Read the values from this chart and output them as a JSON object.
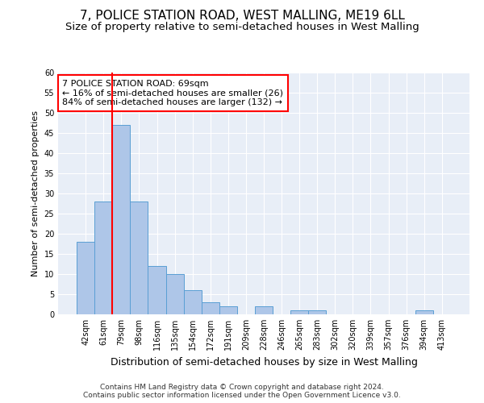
{
  "title": "7, POLICE STATION ROAD, WEST MALLING, ME19 6LL",
  "subtitle": "Size of property relative to semi-detached houses in West Malling",
  "xlabel": "Distribution of semi-detached houses by size in West Malling",
  "ylabel": "Number of semi-detached properties",
  "categories": [
    "42sqm",
    "61sqm",
    "79sqm",
    "98sqm",
    "116sqm",
    "135sqm",
    "154sqm",
    "172sqm",
    "191sqm",
    "209sqm",
    "228sqm",
    "246sqm",
    "265sqm",
    "283sqm",
    "302sqm",
    "320sqm",
    "339sqm",
    "357sqm",
    "376sqm",
    "394sqm",
    "413sqm"
  ],
  "values": [
    18,
    28,
    47,
    28,
    12,
    10,
    6,
    3,
    2,
    0,
    2,
    0,
    1,
    1,
    0,
    0,
    0,
    0,
    0,
    1,
    0
  ],
  "bar_color": "#aec6e8",
  "bar_edge_color": "#5a9fd4",
  "red_line_x": 1.5,
  "annotation_text": "7 POLICE STATION ROAD: 69sqm\n← 16% of semi-detached houses are smaller (26)\n84% of semi-detached houses are larger (132) →",
  "annotation_box_color": "white",
  "annotation_box_edge_color": "red",
  "footer_line1": "Contains HM Land Registry data © Crown copyright and database right 2024.",
  "footer_line2": "Contains public sector information licensed under the Open Government Licence v3.0.",
  "ylim": [
    0,
    60
  ],
  "yticks": [
    0,
    5,
    10,
    15,
    20,
    25,
    30,
    35,
    40,
    45,
    50,
    55,
    60
  ],
  "background_color": "#e8eef7",
  "grid_color": "white",
  "title_fontsize": 11,
  "subtitle_fontsize": 9.5,
  "xlabel_fontsize": 9,
  "ylabel_fontsize": 8,
  "tick_fontsize": 7,
  "annotation_fontsize": 8,
  "footer_fontsize": 6.5
}
